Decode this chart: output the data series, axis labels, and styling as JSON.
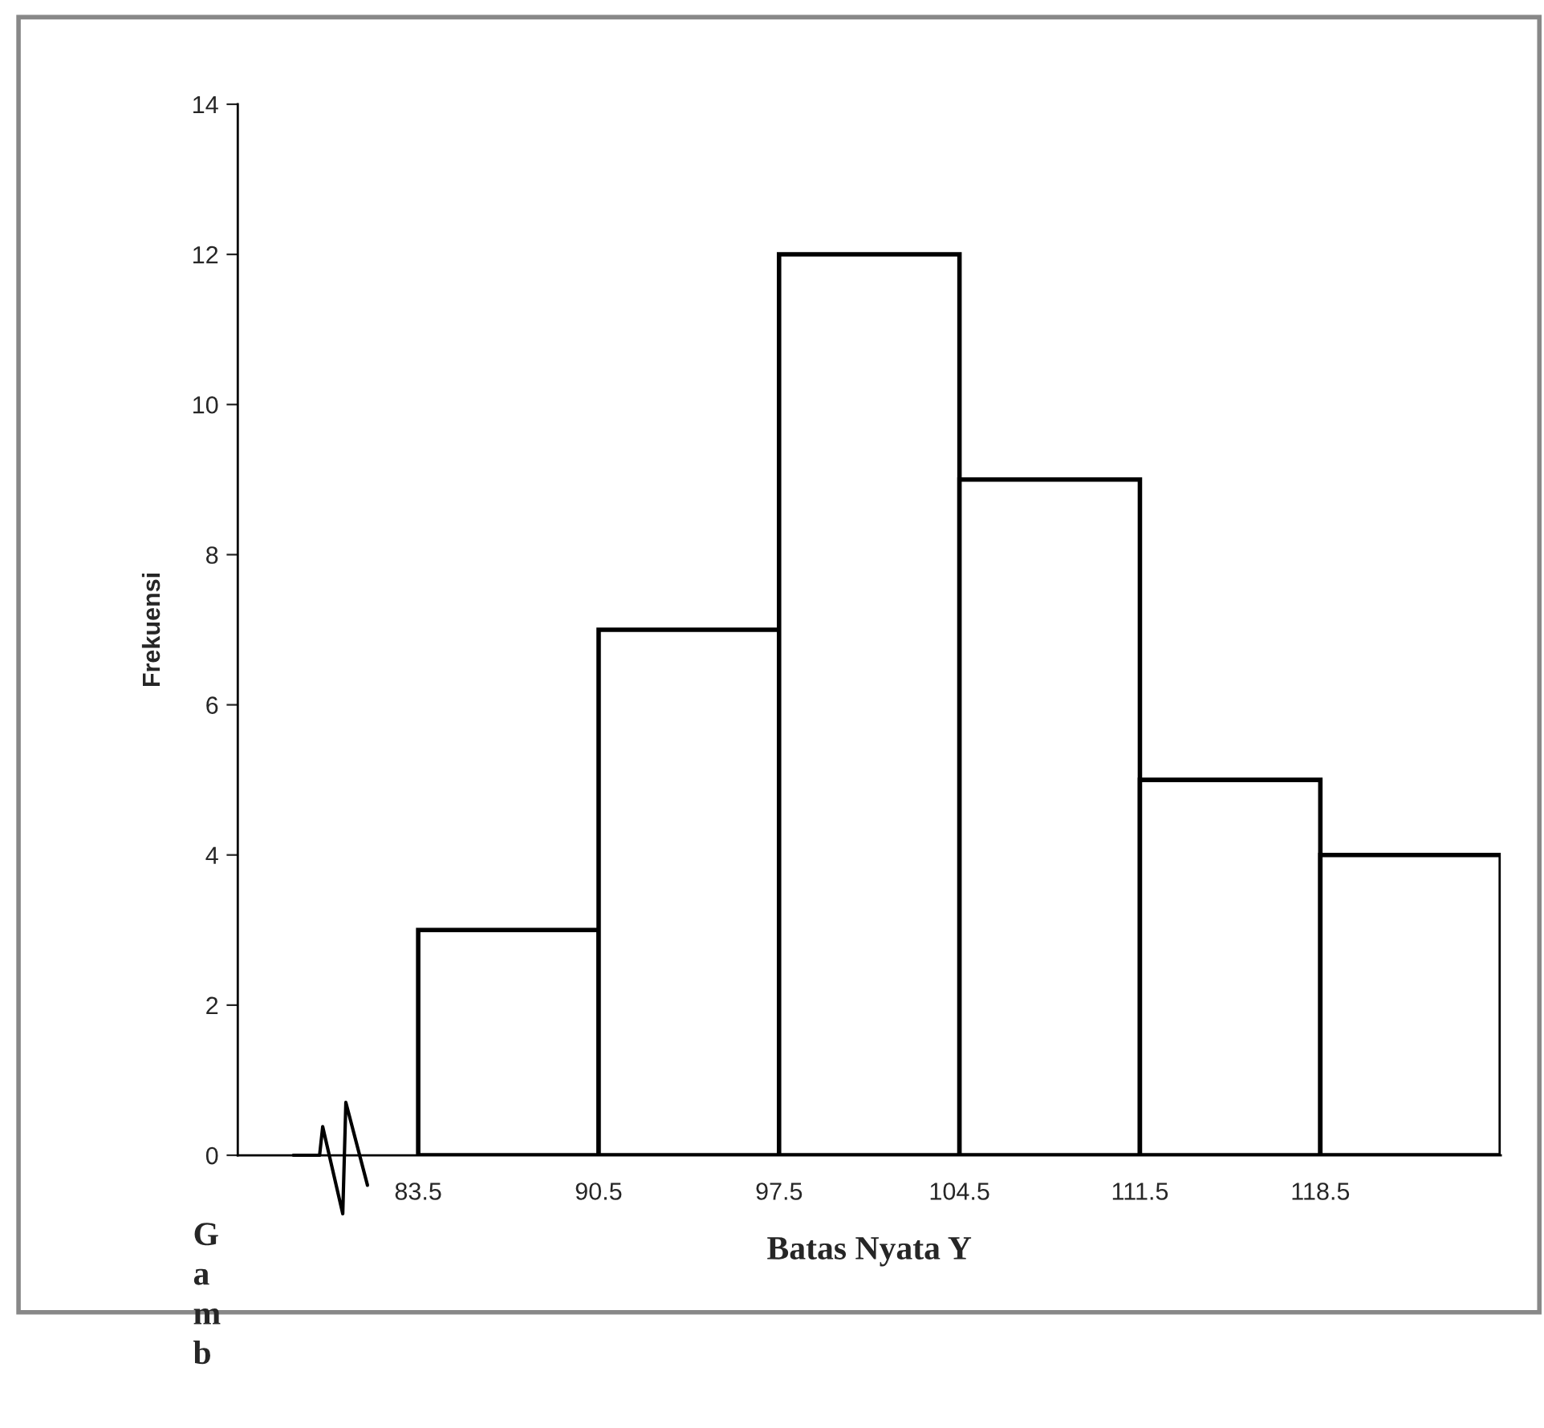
{
  "chart_data": {
    "type": "histogram",
    "bins": [
      83.5,
      90.5,
      97.5,
      104.5,
      111.5,
      118.5,
      125.5
    ],
    "values": [
      3,
      7,
      12,
      9,
      5,
      4
    ],
    "xlabel": "Batas Nyata Y",
    "ylabel": "Frekuensi",
    "xlim": [
      76.5,
      125.5
    ],
    "xticks": [
      83.5,
      90.5,
      97.5,
      104.5,
      111.5,
      118.5
    ],
    "ylim": [
      0,
      14
    ],
    "yticks": [
      0,
      2,
      4,
      6,
      8,
      10,
      12,
      14
    ],
    "color": "#ffffff",
    "grid": false,
    "legend": false,
    "annotations": [
      "G\na\nm\nb"
    ]
  }
}
